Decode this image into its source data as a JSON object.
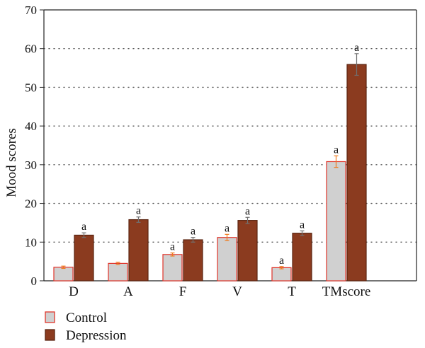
{
  "chart_data": {
    "type": "bar",
    "ylabel": "Mood scores",
    "ylim": [
      0,
      70
    ],
    "yticks": [
      "0",
      "10",
      "20",
      "30",
      "40",
      "50",
      "60",
      "70"
    ],
    "categories": [
      "D",
      "A",
      "F",
      "V",
      "T",
      "TMscore"
    ],
    "grid": "dotted horizontal",
    "legend_position": "bottom-left",
    "colors": {
      "control_fill": "#d0d0d0",
      "control_edge": "#e0352b",
      "depression_fill": "#8b3b1f",
      "depression_edge": "#5a2410",
      "control_error": "#f07a1c",
      "depression_error": "#707070"
    },
    "series": [
      {
        "name": "Control",
        "values": [
          3.5,
          4.5,
          6.8,
          11.2,
          3.4,
          30.8
        ],
        "errors": [
          0.3,
          0.3,
          0.4,
          0.8,
          0.3,
          1.5
        ],
        "annotations": [
          "",
          "",
          "a",
          "a",
          "a",
          "a"
        ]
      },
      {
        "name": "Depression",
        "values": [
          11.8,
          15.8,
          10.6,
          15.6,
          12.3,
          55.9
        ],
        "errors": [
          0.6,
          0.7,
          0.6,
          0.8,
          0.6,
          2.8
        ],
        "annotations": [
          "a",
          "a",
          "a",
          "a",
          "a",
          "a"
        ]
      }
    ]
  }
}
